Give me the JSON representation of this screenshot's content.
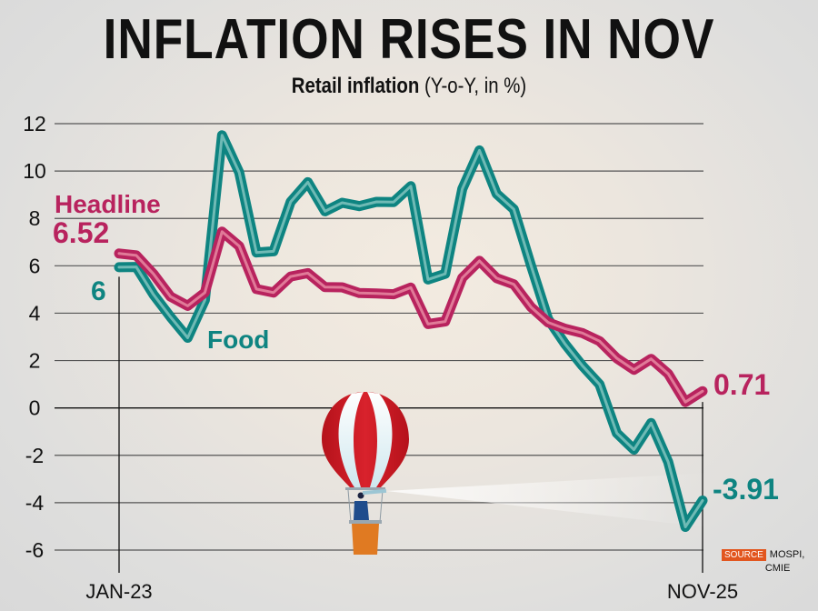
{
  "header": {
    "title": "INFLATION RISES IN NOV",
    "subtitle_bold": "Retail inflation",
    "subtitle_rest": " (Y-o-Y, in %)"
  },
  "source": {
    "tag": "SOURCE",
    "line1": "MOSPI,",
    "line2": "CMIE"
  },
  "colors": {
    "headline": "#b8235e",
    "headline_inner": "#e07a98",
    "food": "#0e8481",
    "food_inner": "#6fbab5",
    "source_tag": "#e2561f"
  },
  "chart_data": {
    "type": "line",
    "title": "INFLATION RISES IN NOV",
    "subtitle": "Retail inflation (Y-o-Y, in %)",
    "xlabel": "",
    "ylabel": "",
    "ylim": [
      -6,
      12
    ],
    "yticks": [
      12,
      10,
      8,
      6,
      4,
      2,
      0,
      -2,
      -4,
      -6
    ],
    "ytick_labels": [
      "12",
      "10",
      "8",
      "6",
      "4",
      "2",
      "0",
      "-2",
      "-4",
      "-6"
    ],
    "grid": true,
    "x": [
      "Jan-23",
      "Feb-23",
      "Mar-23",
      "Apr-23",
      "May-23",
      "Jun-23",
      "Jul-23",
      "Aug-23",
      "Sep-23",
      "Oct-23",
      "Nov-23",
      "Dec-23",
      "Jan-24",
      "Feb-24",
      "Mar-24",
      "Apr-24",
      "May-24",
      "Jun-24",
      "Jul-24",
      "Aug-24",
      "Sep-24",
      "Oct-24",
      "Nov-24",
      "Dec-24",
      "Jan-25",
      "Feb-25",
      "Mar-25",
      "Apr-25",
      "May-25",
      "Jun-25",
      "Jul-25",
      "Aug-25",
      "Sep-25",
      "Oct-25",
      "Nov-25"
    ],
    "xtick_labels": [
      {
        "index": 0,
        "label": "JAN-23"
      },
      {
        "index": 34,
        "label": "NOV-25"
      }
    ],
    "series": [
      {
        "name": "Headline",
        "start_label": "6.52",
        "end_label": "0.71",
        "values": [
          6.52,
          6.44,
          5.66,
          4.7,
          4.31,
          4.87,
          7.44,
          6.83,
          5.02,
          4.87,
          5.55,
          5.69,
          5.1,
          5.09,
          4.85,
          4.83,
          4.8,
          5.08,
          3.54,
          3.65,
          5.49,
          6.21,
          5.48,
          5.22,
          4.26,
          3.61,
          3.34,
          3.16,
          2.82,
          2.1,
          1.61,
          2.07,
          1.44,
          0.25,
          0.71
        ]
      },
      {
        "name": "Food",
        "start_label": "6",
        "end_label": "-3.91",
        "values": [
          5.94,
          5.95,
          4.79,
          3.84,
          2.96,
          4.55,
          11.51,
          9.94,
          6.56,
          6.61,
          8.7,
          9.53,
          8.3,
          8.66,
          8.52,
          8.7,
          8.69,
          9.36,
          5.42,
          5.66,
          9.24,
          10.87,
          9.04,
          8.39,
          6.02,
          3.75,
          2.69,
          1.78,
          0.99,
          -1.06,
          -1.76,
          -0.64,
          -2.28,
          -5.02,
          -3.91
        ]
      }
    ],
    "legend": "inline labels (Headline top-left, Food below left)"
  }
}
